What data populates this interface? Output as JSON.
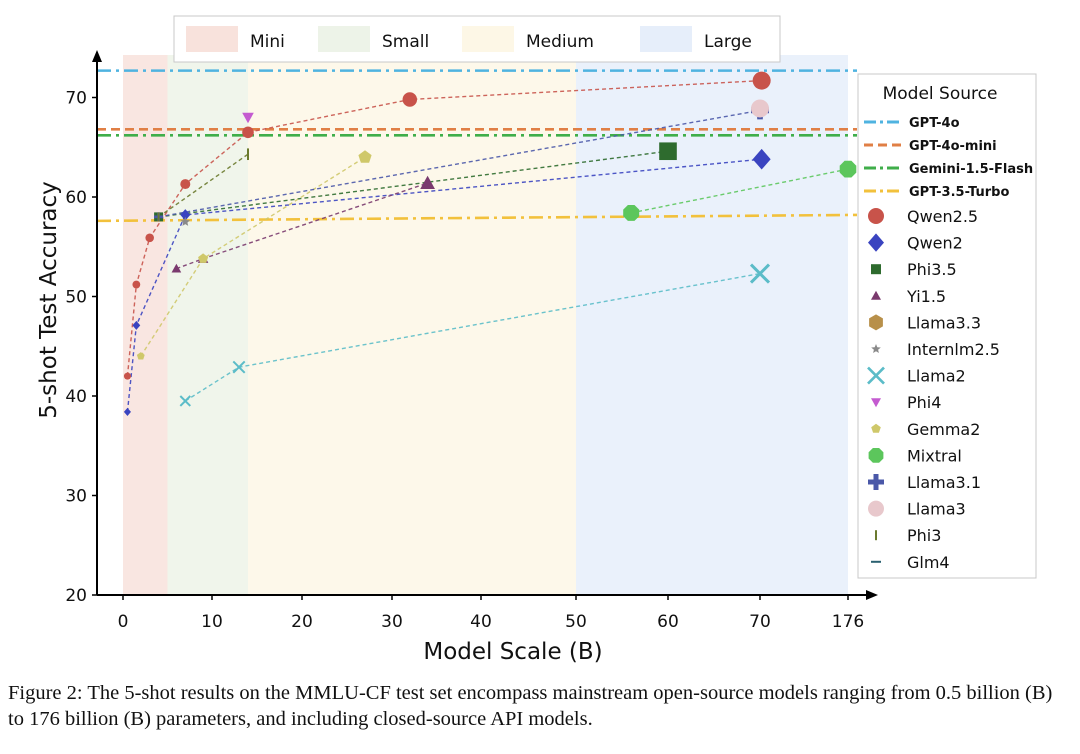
{
  "chart_data": {
    "type": "scatter",
    "xlabel": "Model Scale (B)",
    "ylabel": "5-shot Test Accuracy",
    "x_ticks": [
      "0",
      "10",
      "20",
      "30",
      "40",
      "50",
      "60",
      "70",
      "176"
    ],
    "y_ticks": [
      20,
      30,
      40,
      50,
      60,
      70
    ],
    "ylim": [
      20,
      73
    ],
    "grid": false,
    "regions": [
      {
        "name": "Mini",
        "x_range": [
          0,
          5
        ],
        "color": "#f8e2dc"
      },
      {
        "name": "Small",
        "x_range": [
          5,
          14
        ],
        "color": "#edf3e8"
      },
      {
        "name": "Medium",
        "x_range": [
          14,
          50
        ],
        "color": "#fdf7e6"
      },
      {
        "name": "Large",
        "x_range": [
          50,
          176
        ],
        "color": "#e6eefa"
      }
    ],
    "legend_title": "Model Source",
    "reference_lines": [
      {
        "name": "GPT-4o",
        "y": 72.7,
        "color": "#4fb3e0",
        "style": "dashdot"
      },
      {
        "name": "GPT-4o-mini",
        "y": 66.8,
        "color": "#e07f45",
        "style": "dashed"
      },
      {
        "name": "Gemini-1.5-Flash",
        "y": 66.2,
        "color": "#3fae4a",
        "style": "dashdot"
      },
      {
        "name": "GPT-3.5-Turbo",
        "y_start": 57.6,
        "y_end": 58.2,
        "color": "#f2c13c",
        "style": "dashdot"
      }
    ],
    "series": [
      {
        "name": "Qwen2.5",
        "marker": "circle",
        "color": "#c8534a",
        "points": [
          [
            0.5,
            42
          ],
          [
            1.5,
            51.2
          ],
          [
            3,
            55.9
          ],
          [
            7,
            61.3
          ],
          [
            14,
            66.5
          ],
          [
            32,
            69.8
          ],
          [
            72,
            71.7
          ]
        ]
      },
      {
        "name": "Qwen2",
        "marker": "diamond",
        "color": "#3a44c0",
        "points": [
          [
            0.5,
            38.4
          ],
          [
            1.5,
            47.1
          ],
          [
            7,
            58.2
          ],
          [
            72,
            63.8
          ]
        ]
      },
      {
        "name": "Phi3.5",
        "marker": "square",
        "color": "#2e6b2e",
        "points": [
          [
            4,
            58
          ],
          [
            60,
            64.6
          ]
        ]
      },
      {
        "name": "Yi1.5",
        "marker": "triangle-up",
        "color": "#7a3a6e",
        "points": [
          [
            6,
            52.8
          ],
          [
            9,
            53.8
          ],
          [
            34,
            61.4
          ]
        ]
      },
      {
        "name": "Llama3.3",
        "marker": "hexagon",
        "color": "#b8904a",
        "points": []
      },
      {
        "name": "Internlm2.5",
        "marker": "star",
        "color": "#8a8a8a",
        "points": [
          [
            7,
            57.5
          ]
        ]
      },
      {
        "name": "Llama2",
        "marker": "x",
        "color": "#5bbcc8",
        "points": [
          [
            7,
            39.5
          ],
          [
            13,
            42.9
          ],
          [
            70,
            52.3
          ]
        ]
      },
      {
        "name": "Phi4",
        "marker": "triangle-down",
        "color": "#c45bd0",
        "points": [
          [
            14,
            68
          ]
        ]
      },
      {
        "name": "Gemma2",
        "marker": "pentagon",
        "color": "#cfc86a",
        "points": [
          [
            2,
            44
          ],
          [
            9,
            53.8
          ],
          [
            27,
            64
          ]
        ]
      },
      {
        "name": "Mixtral",
        "marker": "octagon",
        "color": "#5cc65c",
        "points": [
          [
            56,
            58.4
          ],
          [
            176,
            62.8
          ]
        ]
      },
      {
        "name": "Llama3.1",
        "marker": "plus",
        "color": "#4a58a8",
        "points": [
          [
            4,
            58
          ],
          [
            70,
            68.7
          ]
        ]
      },
      {
        "name": "Llama3",
        "marker": "circle",
        "color": "#e8c8cc",
        "points": [
          [
            70,
            68.9
          ]
        ]
      },
      {
        "name": "Phi3",
        "marker": "vline",
        "color": "#6a7a2e",
        "points": [
          [
            4,
            58
          ],
          [
            14,
            64.3
          ]
        ]
      },
      {
        "name": "Glm4",
        "marker": "hline",
        "color": "#2a6070",
        "points": []
      }
    ]
  },
  "caption": "Figure 2: The 5-shot results on the MMLU-CF test set encompass mainstream open-source models ranging from 0.5 billion (B) to 176 billion (B) parameters, and including closed-source API models."
}
